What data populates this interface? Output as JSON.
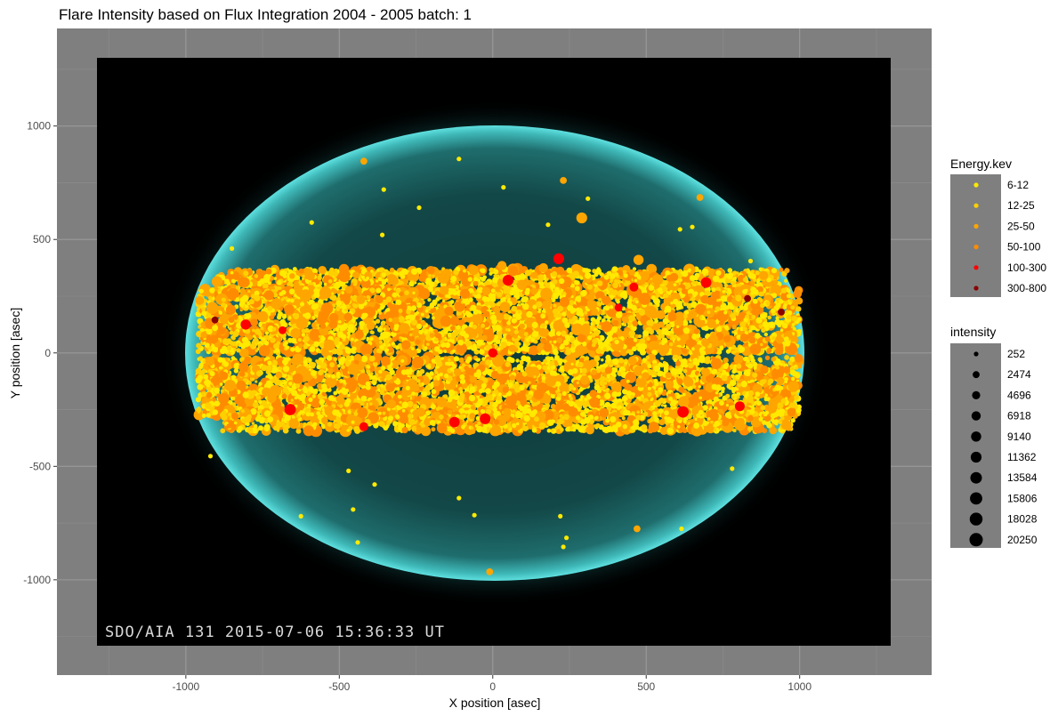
{
  "chart_data": {
    "type": "scatter",
    "title": "Flare Intensity based on Flux Integration 2004 - 2005  batch:  1",
    "xlabel": "X position [asec]",
    "ylabel": "Y position [asec]",
    "xlim": [
      -1420,
      1430
    ],
    "ylim": [
      -1420,
      1430
    ],
    "x_ticks": [
      -1000,
      -500,
      0,
      500,
      1000
    ],
    "y_ticks": [
      -1000,
      -500,
      0,
      500,
      1000
    ],
    "grid": true,
    "panel_background": "#7f7f7f",
    "background_image_caption": "SDO/AIA  131    2015-07-06  15:36:33  UT",
    "legend_position": "right",
    "energy_legend": {
      "title": "Energy.kev",
      "items": [
        {
          "label": "6-12",
          "color": "#ffea00"
        },
        {
          "label": "12-25",
          "color": "#ffd000"
        },
        {
          "label": "25-50",
          "color": "#ffa500"
        },
        {
          "label": "50-100",
          "color": "#ff8c00"
        },
        {
          "label": "100-300",
          "color": "#ff0000"
        },
        {
          "label": "300-800",
          "color": "#8b0000"
        }
      ]
    },
    "intensity_legend": {
      "title": "intensity",
      "items": [
        {
          "label": "252",
          "value": 252
        },
        {
          "label": "2474",
          "value": 2474
        },
        {
          "label": "4696",
          "value": 4696
        },
        {
          "label": "6918",
          "value": 6918
        },
        {
          "label": "9140",
          "value": 9140
        },
        {
          "label": "11362",
          "value": 11362
        },
        {
          "label": "13584",
          "value": 13584
        },
        {
          "label": "15806",
          "value": 15806
        },
        {
          "label": "18028",
          "value": 18028
        },
        {
          "label": "20250",
          "value": 20250
        }
      ]
    },
    "series": [
      {
        "name": "100-300",
        "points": [
          {
            "x": 215,
            "y": 415,
            "intensity": 11000
          },
          {
            "x": 50,
            "y": 320,
            "intensity": 11000
          },
          {
            "x": 695,
            "y": 310,
            "intensity": 10000
          },
          {
            "x": -805,
            "y": 125,
            "intensity": 9000
          },
          {
            "x": -660,
            "y": -250,
            "intensity": 13000
          },
          {
            "x": 620,
            "y": -260,
            "intensity": 13000
          },
          {
            "x": -25,
            "y": -290,
            "intensity": 11000
          },
          {
            "x": -125,
            "y": -305,
            "intensity": 10000
          },
          {
            "x": -420,
            "y": -325,
            "intensity": 6000
          },
          {
            "x": 0,
            "y": 0,
            "intensity": 7000
          },
          {
            "x": 805,
            "y": -235,
            "intensity": 8000
          },
          {
            "x": 460,
            "y": 290,
            "intensity": 6000
          },
          {
            "x": -685,
            "y": 100,
            "intensity": 4000
          },
          {
            "x": 410,
            "y": 200,
            "intensity": 4000
          }
        ]
      },
      {
        "name": "300-800",
        "points": [
          {
            "x": -905,
            "y": 145,
            "intensity": 2474
          },
          {
            "x": 830,
            "y": 240,
            "intensity": 2474
          },
          {
            "x": 940,
            "y": 180,
            "intensity": 2474
          }
        ]
      },
      {
        "name": "25-50",
        "points": [
          {
            "x": 290,
            "y": 595,
            "intensity": 11362
          },
          {
            "x": 475,
            "y": 410,
            "intensity": 9140
          },
          {
            "x": 30,
            "y": 385,
            "intensity": 6918
          },
          {
            "x": 165,
            "y": 375,
            "intensity": 6918
          },
          {
            "x": 95,
            "y": 300,
            "intensity": 9140
          },
          {
            "x": -150,
            "y": 350,
            "intensity": 6918
          },
          {
            "x": -430,
            "y": 235,
            "intensity": 6918
          },
          {
            "x": 230,
            "y": 760,
            "intensity": 2474
          },
          {
            "x": 675,
            "y": 685,
            "intensity": 2474
          },
          {
            "x": -420,
            "y": 845,
            "intensity": 2474
          },
          {
            "x": 470,
            "y": -775,
            "intensity": 2474
          },
          {
            "x": -10,
            "y": -965,
            "intensity": 2474
          },
          {
            "x": -330,
            "y": -225,
            "intensity": 6918
          },
          {
            "x": 300,
            "y": -120,
            "intensity": 6918
          },
          {
            "x": -720,
            "y": -200,
            "intensity": 6918
          },
          {
            "x": 720,
            "y": 60,
            "intensity": 6918
          }
        ]
      },
      {
        "name": "6-12",
        "points": [
          {
            "x": -110,
            "y": 855,
            "intensity": 252
          },
          {
            "x": -355,
            "y": 720,
            "intensity": 252
          },
          {
            "x": 35,
            "y": 730,
            "intensity": 252
          },
          {
            "x": -240,
            "y": 640,
            "intensity": 252
          },
          {
            "x": 310,
            "y": 680,
            "intensity": 252
          },
          {
            "x": 650,
            "y": 555,
            "intensity": 252
          },
          {
            "x": 610,
            "y": 545,
            "intensity": 252
          },
          {
            "x": -590,
            "y": 575,
            "intensity": 252
          },
          {
            "x": -360,
            "y": 520,
            "intensity": 252
          },
          {
            "x": 180,
            "y": 565,
            "intensity": 252
          },
          {
            "x": -110,
            "y": -640,
            "intensity": 252
          },
          {
            "x": -60,
            "y": -715,
            "intensity": 252
          },
          {
            "x": 220,
            "y": -720,
            "intensity": 252
          },
          {
            "x": 230,
            "y": -855,
            "intensity": 252
          },
          {
            "x": 615,
            "y": -775,
            "intensity": 252
          },
          {
            "x": -625,
            "y": -720,
            "intensity": 252
          },
          {
            "x": -455,
            "y": -690,
            "intensity": 252
          },
          {
            "x": -920,
            "y": -455,
            "intensity": 252
          },
          {
            "x": 780,
            "y": -510,
            "intensity": 252
          },
          {
            "x": -470,
            "y": -520,
            "intensity": 252
          },
          {
            "x": -385,
            "y": -580,
            "intensity": 252
          },
          {
            "x": -440,
            "y": -835,
            "intensity": 252
          },
          {
            "x": 240,
            "y": -815,
            "intensity": 252
          },
          {
            "x": -850,
            "y": 460,
            "intensity": 252
          },
          {
            "x": 840,
            "y": 405,
            "intensity": 252
          }
        ]
      }
    ],
    "bands": [
      {
        "note_for_density": "dense flare belts",
        "y_center": 315,
        "y_halfwidth": 55,
        "x_min": -900,
        "x_max": 960
      },
      {
        "note_for_density": "dense flare belts",
        "y_center": 140,
        "y_halfwidth": 140,
        "x_min": -960,
        "x_max": 1000
      },
      {
        "note_for_density": "dense flare belts",
        "y_center": -150,
        "y_halfwidth": 130,
        "x_min": -960,
        "x_max": 1000
      },
      {
        "note_for_density": "dense flare belts",
        "y_center": -300,
        "y_halfwidth": 45,
        "x_min": -880,
        "x_max": 980
      }
    ]
  }
}
